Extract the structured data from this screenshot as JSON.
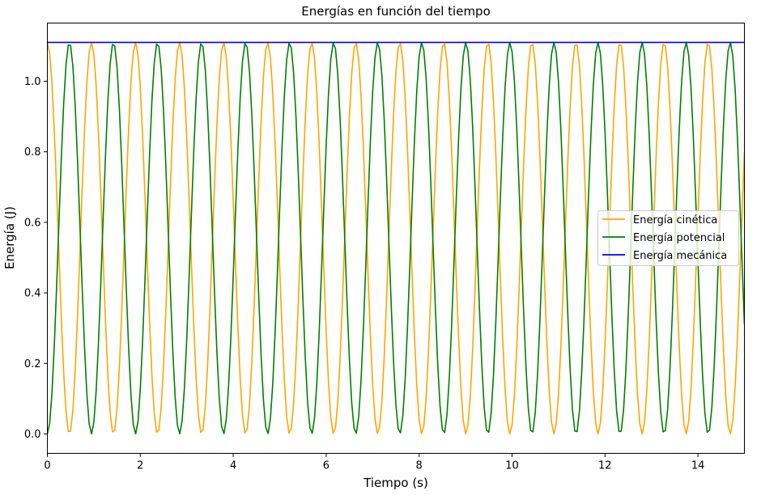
{
  "chart_data": {
    "type": "line",
    "title": "Energías en función del tiempo",
    "xlabel": "Tiempo (s)",
    "ylabel": "Energía (J)",
    "xlim": [
      0,
      15
    ],
    "ylim": [
      -0.055,
      1.165
    ],
    "xticks": [
      0,
      2,
      4,
      6,
      8,
      10,
      12,
      14
    ],
    "yticks": [
      0.0,
      0.2,
      0.4,
      0.6,
      0.8,
      1.0
    ],
    "xtick_labels": [
      "0",
      "2",
      "4",
      "6",
      "8",
      "10",
      "12",
      "14"
    ],
    "ytick_labels": [
      "0.0",
      "0.2",
      "0.4",
      "0.6",
      "0.8",
      "1.0"
    ],
    "grid": false,
    "legend_position": "center-right",
    "sampling": {
      "t_start": 0,
      "t_end": 15,
      "samples": 301
    },
    "oscillation": {
      "total_energy": 1.11,
      "kinetic_peak_times": [
        0,
        0.948
      ],
      "potential_peak_times": [
        0.474,
        1.422
      ]
    },
    "series": [
      {
        "name": "Energía cinética",
        "color": "#ffa500",
        "formula": "E*cos^2(w*t)"
      },
      {
        "name": "Energía potencial",
        "color": "#008000",
        "formula": "E*sin^2(w*t)"
      },
      {
        "name": "Energía mecánica",
        "color": "#0000ff",
        "constant": 1.11
      }
    ]
  }
}
